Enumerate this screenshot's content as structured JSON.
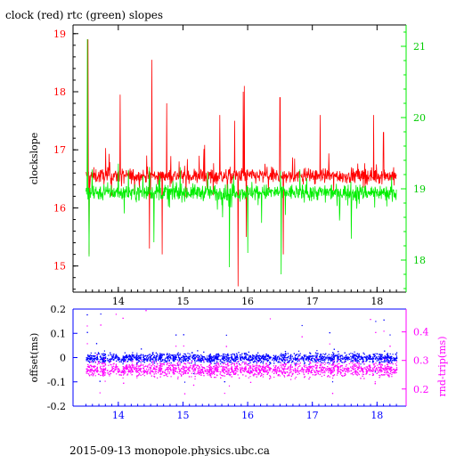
{
  "title": "clock (red) rtc (green) slopes",
  "footer": "2015-09-13  monopole.physics.ubc.ca",
  "colors": {
    "red": "#ff0000",
    "green": "#00ee00",
    "blue": "#0000ff",
    "magenta": "#ff00ff",
    "axis": "#000000"
  },
  "chart_data": [
    {
      "type": "line",
      "title": "clock (red) rtc (green) slopes",
      "xlabel": "",
      "x_ticks": [
        "14",
        "15",
        "16",
        "17",
        "18"
      ],
      "xlim": [
        13.3,
        18.45
      ],
      "ylabel": "clockslope",
      "ylim_left": [
        14.55,
        19.15
      ],
      "y_ticks_left": [
        "15",
        "16",
        "17",
        "18",
        "19"
      ],
      "ylim_right": [
        17.55,
        21.3
      ],
      "y_ticks_right": [
        "18",
        "19",
        "20",
        "21"
      ],
      "series": [
        {
          "name": "clock",
          "color": "#ff0000",
          "axis": "left",
          "baseline": 16.55,
          "spikes": [
            [
              13.53,
              18.9
            ],
            [
              13.55,
              15.2
            ],
            [
              14.03,
              17.95
            ],
            [
              14.48,
              15.3
            ],
            [
              14.52,
              18.55
            ],
            [
              14.68,
              15.2
            ],
            [
              14.75,
              17.8
            ],
            [
              15.57,
              17.6
            ],
            [
              15.8,
              17.5
            ],
            [
              15.85,
              14.65
            ],
            [
              15.93,
              18.0
            ],
            [
              15.95,
              18.1
            ],
            [
              15.98,
              15.5
            ],
            [
              16.5,
              17.9
            ],
            [
              16.55,
              15.2
            ],
            [
              17.12,
              17.6
            ],
            [
              17.95,
              17.6
            ],
            [
              18.1,
              17.3
            ]
          ]
        },
        {
          "name": "rtc",
          "color": "#00ee00",
          "axis": "right",
          "baseline": 18.95,
          "spikes": [
            [
              13.52,
              21.1
            ],
            [
              13.55,
              18.05
            ],
            [
              14.55,
              18.25
            ],
            [
              15.72,
              17.9
            ],
            [
              16.0,
              18.1
            ],
            [
              16.52,
              17.8
            ],
            [
              17.6,
              18.3
            ]
          ]
        }
      ]
    },
    {
      "type": "scatter",
      "title": "",
      "xlabel": "",
      "x_ticks": [
        "14",
        "15",
        "16",
        "17",
        "18"
      ],
      "xlim": [
        13.3,
        18.45
      ],
      "ylabel": "offset(ms)",
      "ylim_left": [
        -0.2,
        0.2
      ],
      "y_ticks_left": [
        "-0.2",
        "-0.1",
        "0",
        "0.1",
        "0.2"
      ],
      "y2label": "rnd-trip(ms)",
      "ylim_right": [
        0.14,
        0.48
      ],
      "y_ticks_right": [
        "0.2",
        "0.3",
        "0.4"
      ],
      "series": [
        {
          "name": "offset",
          "color": "#0000ff",
          "axis": "left",
          "center": 0.0,
          "spread": 0.02
        },
        {
          "name": "rnd-trip",
          "color": "#ff00ff",
          "axis": "right",
          "center": 0.27,
          "spread": 0.025
        }
      ]
    }
  ]
}
